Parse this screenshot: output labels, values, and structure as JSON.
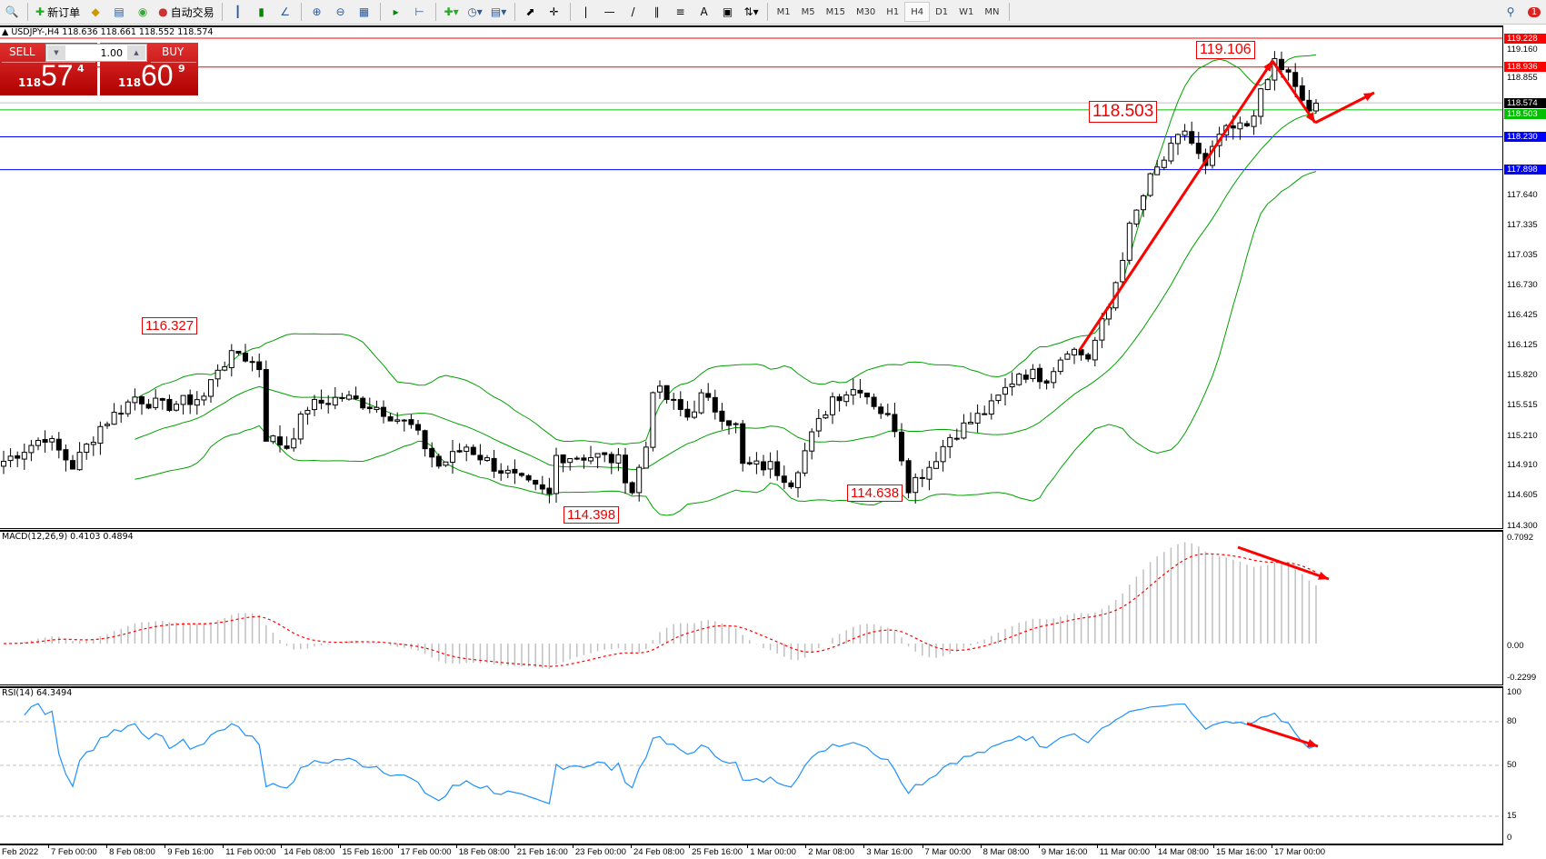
{
  "toolbar": {
    "new_order_label": "新订单",
    "auto_trading_label": "自动交易",
    "icons": [
      "zoom-icon",
      "new-order-icon",
      "market-watch-icon",
      "navigator-icon",
      "signals-icon",
      "auto-trading-icon",
      "bar-chart-icon",
      "candle-chart-icon",
      "line-chart-icon",
      "zoom-in-icon",
      "zoom-out-icon",
      "tile-windows-icon",
      "auto-scroll-icon",
      "chart-shift-icon",
      "indicators-icon",
      "periods-icon",
      "templates-icon",
      "cursor-icon",
      "crosshair-icon",
      "vertical-line-icon",
      "horizontal-line-icon",
      "trendline-icon",
      "channel-icon",
      "fibonacci-icon",
      "text-icon",
      "text-label-icon",
      "arrows-icon"
    ],
    "timeframes": [
      "M1",
      "M5",
      "M15",
      "M30",
      "H1",
      "H4",
      "D1",
      "W1",
      "MN"
    ],
    "active_timeframe": "H4",
    "notification_count": "1"
  },
  "chart": {
    "header": "USDJPY-,H4  118.636 118.661 118.552 118.574",
    "symbol": "USDJPY-",
    "timeframe": "H4",
    "trade_panel": {
      "sell_label": "SELL",
      "buy_label": "BUY",
      "lot": "1.00",
      "sell_prefix": "118",
      "sell_big": "57",
      "sell_sup": "4",
      "buy_prefix": "118",
      "buy_big": "60",
      "buy_sup": "9"
    },
    "price_axis": [
      "119.160",
      "118.855",
      "117.640",
      "117.335",
      "117.035",
      "116.730",
      "116.425",
      "116.125",
      "115.820",
      "115.515",
      "115.210",
      "114.910",
      "114.605",
      "114.300"
    ],
    "price_range": [
      114.3,
      119.228
    ],
    "levels": [
      {
        "price": 119.228,
        "label": "119.228",
        "color": "#ff0000"
      },
      {
        "price": 118.936,
        "label": "118.936",
        "color": "#ff0000"
      },
      {
        "price": 118.574,
        "label": "118.574",
        "color": "#000000",
        "line": "#c0c0c0"
      },
      {
        "price": 118.503,
        "label": "118.503",
        "color": "#00c000"
      },
      {
        "price": 118.23,
        "label": "118.230",
        "color": "#0000ff"
      },
      {
        "price": 117.898,
        "label": "117.898",
        "color": "#0000ff"
      }
    ],
    "annotations": [
      "119.106",
      "118.503",
      "116.327",
      "114.398",
      "114.638"
    ],
    "close_path": [
      [
        0,
        114.95
      ],
      [
        6,
        115.2
      ],
      [
        10,
        114.9
      ],
      [
        14,
        115.3
      ],
      [
        19,
        115.6
      ],
      [
        23,
        115.5
      ],
      [
        29,
        115.6
      ],
      [
        31,
        115.9
      ],
      [
        34,
        116.05
      ],
      [
        37,
        115.9
      ],
      [
        38,
        115.2
      ],
      [
        41,
        115.1
      ],
      [
        44,
        115.5
      ],
      [
        49,
        115.6
      ],
      [
        54,
        115.5
      ],
      [
        59,
        115.3
      ],
      [
        63,
        114.9
      ],
      [
        67,
        115.1
      ],
      [
        71,
        114.9
      ],
      [
        76,
        114.7
      ],
      [
        79,
        114.6
      ],
      [
        80,
        115.0
      ],
      [
        86,
        115.0
      ],
      [
        89,
        114.95
      ],
      [
        91,
        114.65
      ],
      [
        93,
        115.1
      ],
      [
        94,
        115.7
      ],
      [
        99,
        115.4
      ],
      [
        101,
        115.6
      ],
      [
        106,
        115.3
      ],
      [
        107,
        114.9
      ],
      [
        111,
        114.9
      ],
      [
        114,
        114.75
      ],
      [
        117,
        115.2
      ],
      [
        120,
        115.6
      ],
      [
        124,
        115.7
      ],
      [
        129,
        115.3
      ],
      [
        131,
        114.7
      ],
      [
        134,
        114.9
      ],
      [
        137,
        115.2
      ],
      [
        143,
        115.5
      ],
      [
        147,
        115.85
      ],
      [
        151,
        115.8
      ],
      [
        154,
        116.1
      ],
      [
        157,
        116.0
      ],
      [
        160,
        116.5
      ],
      [
        163,
        117.3
      ],
      [
        166,
        117.8
      ],
      [
        169,
        118.1
      ],
      [
        171,
        118.3
      ],
      [
        174,
        117.9
      ],
      [
        176,
        118.25
      ],
      [
        180,
        118.35
      ],
      [
        183,
        118.8
      ],
      [
        184,
        119.0
      ],
      [
        186,
        118.85
      ],
      [
        187,
        118.7
      ],
      [
        189,
        118.5
      ],
      [
        190,
        118.57
      ]
    ],
    "colors": {
      "bull": "#ffffff",
      "bear": "#000000",
      "bands": "#00a000",
      "annotation": "#ff0000"
    }
  },
  "macd": {
    "header": "MACD(12,26,9) 0.4103 0.4894",
    "axis": [
      "0.7092",
      "0.00",
      "-0.2299"
    ],
    "range": [
      -0.2299,
      0.7092
    ],
    "histogram_color": "#c0c0c0",
    "signal_color": "#ff0000"
  },
  "rsi": {
    "header": "RSI(14) 64.3494",
    "axis": [
      "100",
      "80",
      "50",
      "15",
      "0"
    ],
    "levels": [
      80,
      50,
      15
    ],
    "line_color": "#1e90ff"
  },
  "time_axis": [
    "Feb 2022",
    "7 Feb 00:00",
    "8 Feb 08:00",
    "9 Feb 16:00",
    "11 Feb 00:00",
    "14 Feb 08:00",
    "15 Feb 16:00",
    "17 Feb 00:00",
    "18 Feb 08:00",
    "21 Feb 16:00",
    "23 Feb 00:00",
    "24 Feb 08:00",
    "25 Feb 16:00",
    "1 Mar 00:00",
    "2 Mar 08:00",
    "3 Mar 16:00",
    "7 Mar 00:00",
    "8 Mar 08:00",
    "9 Mar 16:00",
    "11 Mar 00:00",
    "14 Mar 08:00",
    "15 Mar 16:00",
    "17 Mar 00:00"
  ]
}
